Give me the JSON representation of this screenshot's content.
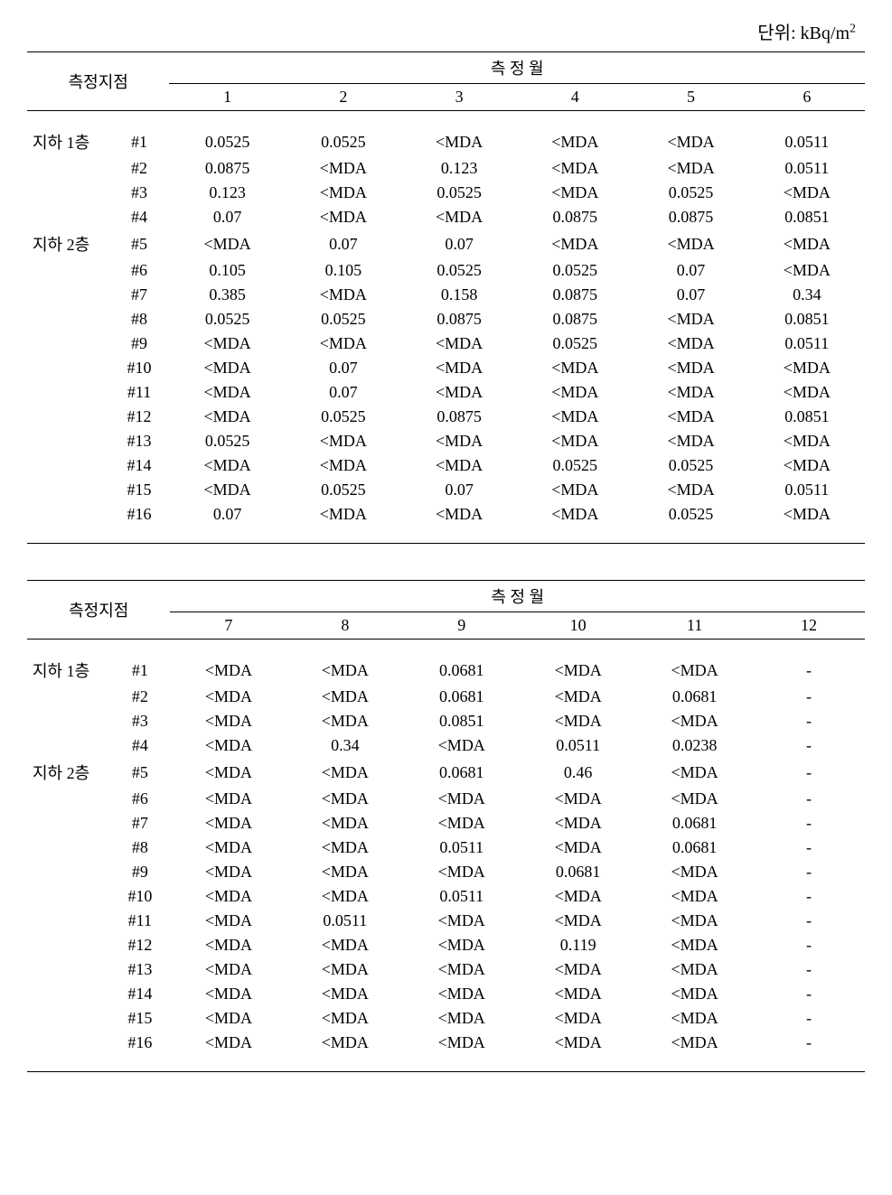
{
  "unit_label_prefix": "단위: kBq/m",
  "unit_label_sup": "2",
  "location_header": "측정지점",
  "month_header": "측 정 월",
  "locations": {
    "b1": "지하 1층",
    "b2": "지하 2층"
  },
  "table1": {
    "months": [
      "1",
      "2",
      "3",
      "4",
      "5",
      "6"
    ],
    "rows": [
      {
        "loc": "지하 1층",
        "point": "#1",
        "vals": [
          "0.0525",
          "0.0525",
          "<MDA",
          "<MDA",
          "<MDA",
          "0.0511"
        ]
      },
      {
        "loc": "",
        "point": "#2",
        "vals": [
          "0.0875",
          "<MDA",
          "0.123",
          "<MDA",
          "<MDA",
          "0.0511"
        ]
      },
      {
        "loc": "",
        "point": "#3",
        "vals": [
          "0.123",
          "<MDA",
          "0.0525",
          "<MDA",
          "0.0525",
          "<MDA"
        ]
      },
      {
        "loc": "",
        "point": "#4",
        "vals": [
          "0.07",
          "<MDA",
          "<MDA",
          "0.0875",
          "0.0875",
          "0.0851"
        ]
      },
      {
        "loc": "지하 2층",
        "point": "#5",
        "vals": [
          "<MDA",
          "0.07",
          "0.07",
          "<MDA",
          "<MDA",
          "<MDA"
        ]
      },
      {
        "loc": "",
        "point": "#6",
        "vals": [
          "0.105",
          "0.105",
          "0.0525",
          "0.0525",
          "0.07",
          "<MDA"
        ]
      },
      {
        "loc": "",
        "point": "#7",
        "vals": [
          "0.385",
          "<MDA",
          "0.158",
          "0.0875",
          "0.07",
          "0.34"
        ]
      },
      {
        "loc": "",
        "point": "#8",
        "vals": [
          "0.0525",
          "0.0525",
          "0.0875",
          "0.0875",
          "<MDA",
          "0.0851"
        ]
      },
      {
        "loc": "",
        "point": "#9",
        "vals": [
          "<MDA",
          "<MDA",
          "<MDA",
          "0.0525",
          "<MDA",
          "0.0511"
        ]
      },
      {
        "loc": "",
        "point": "#10",
        "vals": [
          "<MDA",
          "0.07",
          "<MDA",
          "<MDA",
          "<MDA",
          "<MDA"
        ]
      },
      {
        "loc": "",
        "point": "#11",
        "vals": [
          "<MDA",
          "0.07",
          "<MDA",
          "<MDA",
          "<MDA",
          "<MDA"
        ]
      },
      {
        "loc": "",
        "point": "#12",
        "vals": [
          "<MDA",
          "0.0525",
          "0.0875",
          "<MDA",
          "<MDA",
          "0.0851"
        ]
      },
      {
        "loc": "",
        "point": "#13",
        "vals": [
          "0.0525",
          "<MDA",
          "<MDA",
          "<MDA",
          "<MDA",
          "<MDA"
        ]
      },
      {
        "loc": "",
        "point": "#14",
        "vals": [
          "<MDA",
          "<MDA",
          "<MDA",
          "0.0525",
          "0.0525",
          "<MDA"
        ]
      },
      {
        "loc": "",
        "point": "#15",
        "vals": [
          "<MDA",
          "0.0525",
          "0.07",
          "<MDA",
          "<MDA",
          "0.0511"
        ]
      },
      {
        "loc": "",
        "point": "#16",
        "vals": [
          "0.07",
          "<MDA",
          "<MDA",
          "<MDA",
          "0.0525",
          "<MDA"
        ]
      }
    ]
  },
  "table2": {
    "months": [
      "7",
      "8",
      "9",
      "10",
      "11",
      "12"
    ],
    "rows": [
      {
        "loc": "지하 1층",
        "point": "#1",
        "vals": [
          "<MDA",
          "<MDA",
          "0.0681",
          "<MDA",
          "<MDA",
          "-"
        ]
      },
      {
        "loc": "",
        "point": "#2",
        "vals": [
          "<MDA",
          "<MDA",
          "0.0681",
          "<MDA",
          "0.0681",
          "-"
        ]
      },
      {
        "loc": "",
        "point": "#3",
        "vals": [
          "<MDA",
          "<MDA",
          "0.0851",
          "<MDA",
          "<MDA",
          "-"
        ]
      },
      {
        "loc": "",
        "point": "#4",
        "vals": [
          "<MDA",
          "0.34",
          "<MDA",
          "0.0511",
          "0.0238",
          "-"
        ]
      },
      {
        "loc": "지하 2층",
        "point": "#5",
        "vals": [
          "<MDA",
          "<MDA",
          "0.0681",
          "0.46",
          "<MDA",
          "-"
        ]
      },
      {
        "loc": "",
        "point": "#6",
        "vals": [
          "<MDA",
          "<MDA",
          "<MDA",
          "<MDA",
          "<MDA",
          "-"
        ]
      },
      {
        "loc": "",
        "point": "#7",
        "vals": [
          "<MDA",
          "<MDA",
          "<MDA",
          "<MDA",
          "0.0681",
          "-"
        ]
      },
      {
        "loc": "",
        "point": "#8",
        "vals": [
          "<MDA",
          "<MDA",
          "0.0511",
          "<MDA",
          "0.0681",
          "-"
        ]
      },
      {
        "loc": "",
        "point": "#9",
        "vals": [
          "<MDA",
          "<MDA",
          "<MDA",
          "0.0681",
          "<MDA",
          "-"
        ]
      },
      {
        "loc": "",
        "point": "#10",
        "vals": [
          "<MDA",
          "<MDA",
          "0.0511",
          "<MDA",
          "<MDA",
          "-"
        ]
      },
      {
        "loc": "",
        "point": "#11",
        "vals": [
          "<MDA",
          "0.0511",
          "<MDA",
          "<MDA",
          "<MDA",
          "-"
        ]
      },
      {
        "loc": "",
        "point": "#12",
        "vals": [
          "<MDA",
          "<MDA",
          "<MDA",
          "0.119",
          "<MDA",
          "-"
        ]
      },
      {
        "loc": "",
        "point": "#13",
        "vals": [
          "<MDA",
          "<MDA",
          "<MDA",
          "<MDA",
          "<MDA",
          "-"
        ]
      },
      {
        "loc": "",
        "point": "#14",
        "vals": [
          "<MDA",
          "<MDA",
          "<MDA",
          "<MDA",
          "<MDA",
          "-"
        ]
      },
      {
        "loc": "",
        "point": "#15",
        "vals": [
          "<MDA",
          "<MDA",
          "<MDA",
          "<MDA",
          "<MDA",
          "-"
        ]
      },
      {
        "loc": "",
        "point": "#16",
        "vals": [
          "<MDA",
          "<MDA",
          "<MDA",
          "<MDA",
          "<MDA",
          "-"
        ]
      }
    ]
  }
}
